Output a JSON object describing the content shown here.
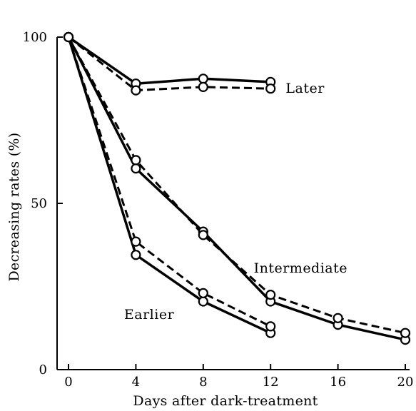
{
  "chart_data": {
    "type": "line",
    "title": "",
    "xlabel": "Days after dark-treatment",
    "ylabel": "Decreasing rates (%)",
    "xlim": [
      0,
      20
    ],
    "ylim": [
      0,
      100
    ],
    "xticks": [
      0,
      4,
      8,
      12,
      16,
      20
    ],
    "yticks": [
      0,
      50,
      100
    ],
    "grid": false,
    "legend": "none",
    "series": [
      {
        "name": "Later",
        "style": "solid",
        "x": [
          0,
          4,
          8,
          12
        ],
        "y": [
          100,
          86,
          87.5,
          86.5
        ]
      },
      {
        "name": "Later",
        "style": "dashed",
        "x": [
          0,
          4,
          8,
          12
        ],
        "y": [
          100,
          84,
          85,
          84.5
        ]
      },
      {
        "name": "Intermediate",
        "style": "solid",
        "x": [
          0,
          4,
          8,
          12,
          16,
          20
        ],
        "y": [
          100,
          60.5,
          41.5,
          20.5,
          13.5,
          9
        ]
      },
      {
        "name": "Intermediate",
        "style": "dashed",
        "x": [
          0,
          4,
          8,
          12,
          16,
          20
        ],
        "y": [
          100,
          63,
          40.5,
          22.5,
          15.5,
          11
        ]
      },
      {
        "name": "Earlier",
        "style": "solid",
        "x": [
          0,
          4,
          8,
          12
        ],
        "y": [
          100,
          34.5,
          20.5,
          11
        ]
      },
      {
        "name": "Earlier",
        "style": "dashed",
        "x": [
          0,
          4,
          8,
          12
        ],
        "y": [
          100,
          38.5,
          23,
          13
        ]
      }
    ],
    "annotations": [
      {
        "text": "Later",
        "x": 12.9,
        "y": 84.5
      },
      {
        "text": "Intermediate",
        "x": 11.0,
        "y": 30.5
      },
      {
        "text": "Earlier",
        "x": 3.3,
        "y": 16.5
      }
    ]
  }
}
